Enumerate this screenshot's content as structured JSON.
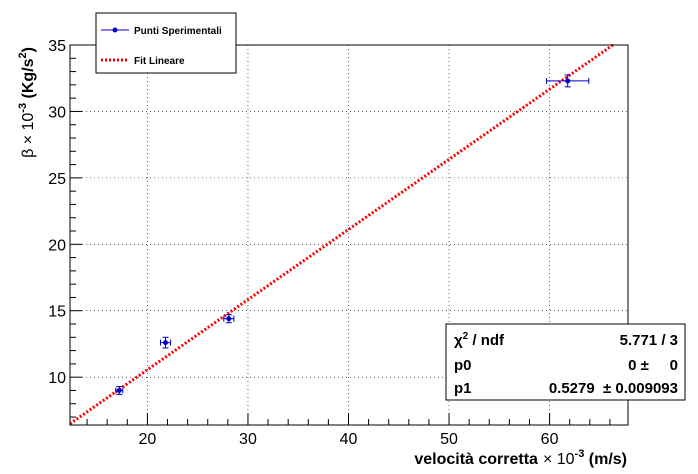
{
  "chart_data": {
    "type": "scatter",
    "xlabel_main": "velocità corretta",
    "xlabel_factor": "× 10",
    "xlabel_exp": "-3",
    "xlabel_unit": " (m/s)",
    "ylabel_main": "β",
    "ylabel_factor": " × 10",
    "ylabel_exp": "-3",
    "ylabel_unit_open": " (Kg/s",
    "ylabel_unit_exp": "2",
    "ylabel_unit_close": ")",
    "xlim": [
      12.3,
      67.8
    ],
    "ylim": [
      6.4,
      35.0
    ],
    "x_ticks": [
      20,
      30,
      40,
      50,
      60
    ],
    "y_ticks": [
      10,
      15,
      20,
      25,
      30,
      35
    ],
    "grid": true,
    "series": [
      {
        "name": "Punti Sperimentali",
        "kind": "points-with-errors",
        "color": "#0000cc",
        "points": [
          {
            "x": 17.2,
            "y": 9.0,
            "xerr": 0.35,
            "yerr": 0.3
          },
          {
            "x": 21.8,
            "y": 12.6,
            "xerr": 0.5,
            "yerr": 0.4
          },
          {
            "x": 28.1,
            "y": 14.4,
            "xerr": 0.5,
            "yerr": 0.3
          },
          {
            "x": 61.8,
            "y": 32.3,
            "xerr": 2.1,
            "yerr": 0.45
          }
        ]
      },
      {
        "name": "Fit Lineare",
        "kind": "line",
        "color": "#ff0000",
        "slope": 0.5279,
        "intercept": 0
      }
    ],
    "legend_placement": "top-left",
    "stats": {
      "rows": [
        {
          "label_main": "χ",
          "label_sup": "2",
          "label_rest": " / ndf",
          "value": "5.771 / 3"
        },
        {
          "label_main": "p0",
          "label_sup": "",
          "label_rest": "",
          "value": "0 ±     0"
        },
        {
          "label_main": "p1",
          "label_sup": "",
          "label_rest": "",
          "value": "0.5279  ± 0.009093"
        }
      ]
    }
  }
}
